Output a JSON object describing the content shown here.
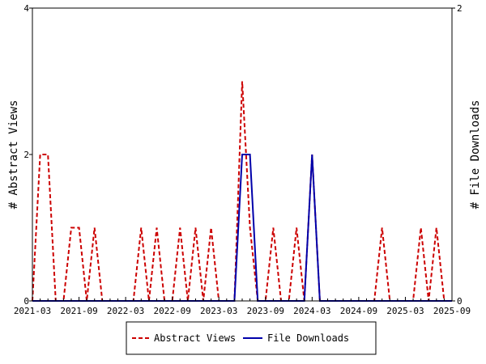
{
  "chart_data": {
    "type": "line",
    "ylabel_left": "# Abstract Views",
    "ylabel_right": "# File Downloads",
    "x_tick_labels": [
      "2021-03",
      "2021-09",
      "2022-03",
      "2022-09",
      "2023-03",
      "2023-09",
      "2024-03",
      "2024-09",
      "2025-03",
      "2025-09"
    ],
    "y_left_ticks": [
      "0",
      "2",
      "4"
    ],
    "y_right_ticks": [
      "0",
      "2"
    ],
    "ylim_left": [
      0,
      4
    ],
    "ylim_right": [
      0,
      2
    ],
    "grid": false,
    "legend_placement": "bottom-center",
    "x_months": [
      "2021-03",
      "2021-04",
      "2021-05",
      "2021-06",
      "2021-07",
      "2021-08",
      "2021-09",
      "2021-10",
      "2021-11",
      "2021-12",
      "2022-01",
      "2022-02",
      "2022-03",
      "2022-04",
      "2022-05",
      "2022-06",
      "2022-07",
      "2022-08",
      "2022-09",
      "2022-10",
      "2022-11",
      "2022-12",
      "2023-01",
      "2023-02",
      "2023-03",
      "2023-04",
      "2023-05",
      "2023-06",
      "2023-07",
      "2023-08",
      "2023-09",
      "2023-10",
      "2023-11",
      "2023-12",
      "2024-01",
      "2024-02",
      "2024-03",
      "2024-04",
      "2024-05",
      "2024-06",
      "2024-07",
      "2024-08",
      "2024-09",
      "2024-10",
      "2024-11",
      "2024-12",
      "2025-01",
      "2025-02",
      "2025-03",
      "2025-04",
      "2025-05",
      "2025-06",
      "2025-07",
      "2025-08",
      "2025-09"
    ],
    "series": [
      {
        "name": "Abstract Views",
        "color": "#cc0000",
        "style": "dashed",
        "axis": "left",
        "values": [
          0,
          2,
          2,
          0,
          0,
          1,
          1,
          0,
          1,
          0,
          0,
          0,
          0,
          0,
          1,
          0,
          1,
          0,
          0,
          1,
          0,
          1,
          0,
          1,
          0,
          0,
          0,
          3,
          1,
          0,
          0,
          1,
          0,
          0,
          1,
          0,
          2,
          0,
          0,
          0,
          0,
          0,
          0,
          0,
          0,
          1,
          0,
          0,
          0,
          0,
          1,
          0,
          1,
          0,
          0
        ]
      },
      {
        "name": "File Downloads",
        "color": "#0000aa",
        "style": "solid",
        "axis": "right",
        "values": [
          0,
          0,
          0,
          0,
          0,
          0,
          0,
          0,
          0,
          0,
          0,
          0,
          0,
          0,
          0,
          0,
          0,
          0,
          0,
          0,
          0,
          0,
          0,
          0,
          0,
          0,
          0,
          1,
          1,
          0,
          0,
          0,
          0,
          0,
          0,
          0,
          1,
          0,
          0,
          0,
          0,
          0,
          0,
          0,
          0,
          0,
          0,
          0,
          0,
          0,
          0,
          0,
          0,
          0,
          0
        ]
      }
    ]
  }
}
